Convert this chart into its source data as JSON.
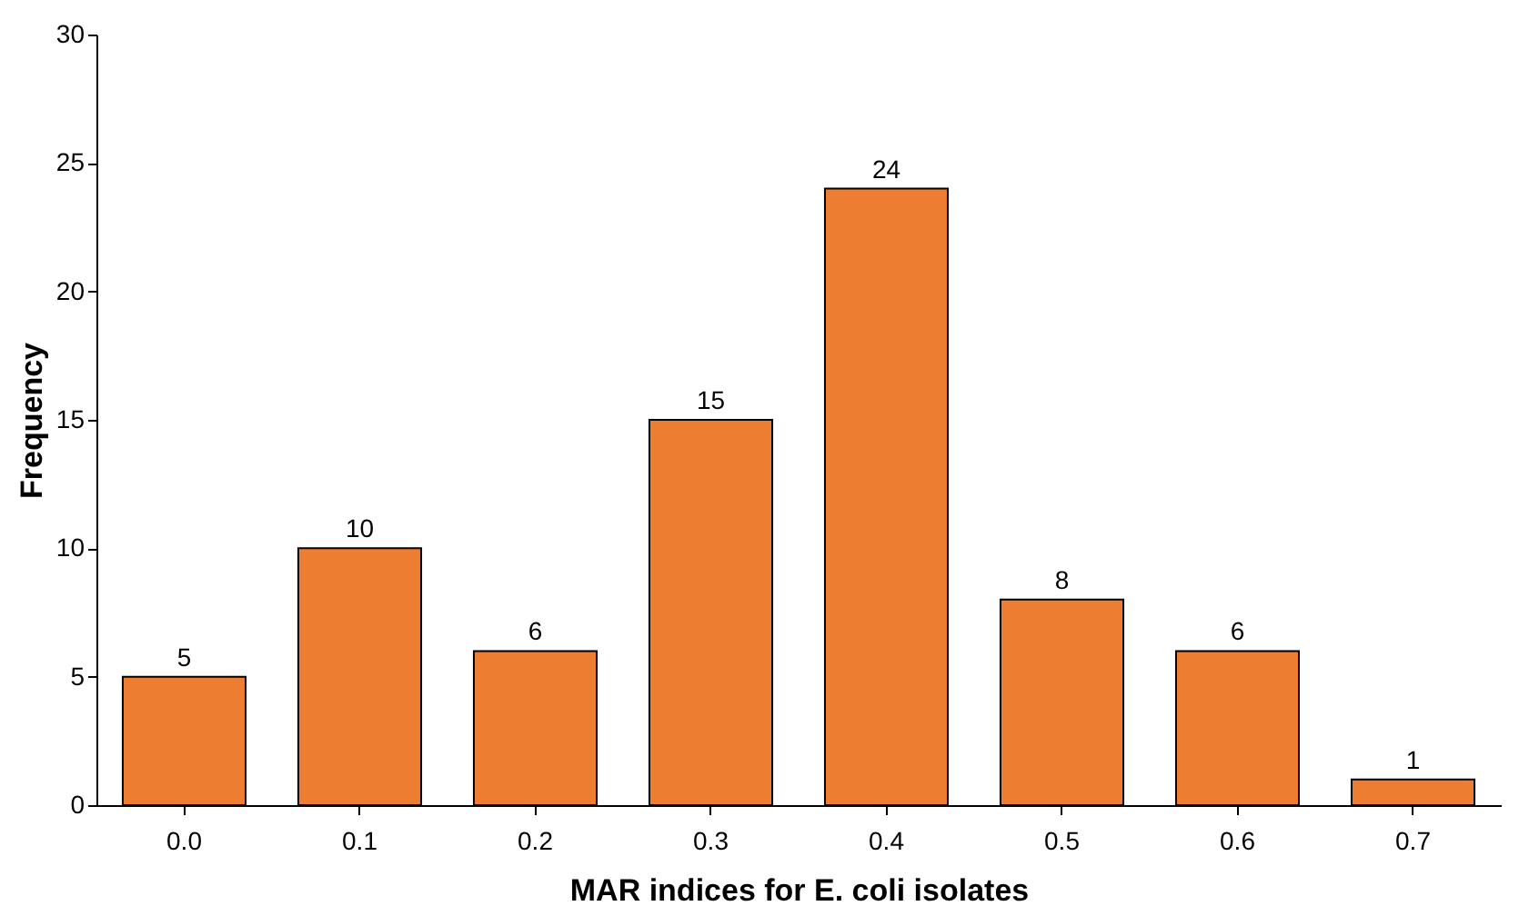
{
  "chart_data": {
    "type": "bar",
    "xlabel": "MAR indices for E. coli isolates",
    "ylabel": "Frequency",
    "categories": [
      "0.0",
      "0.1",
      "0.2",
      "0.3",
      "0.4",
      "0.5",
      "0.6",
      "0.7"
    ],
    "values": [
      5,
      10,
      6,
      15,
      24,
      8,
      6,
      1
    ],
    "color": "#ed7d31",
    "ylim": [
      0,
      30
    ],
    "yticks": [
      0,
      5,
      10,
      15,
      20,
      25,
      30
    ],
    "grid": false,
    "data_labels": true
  }
}
